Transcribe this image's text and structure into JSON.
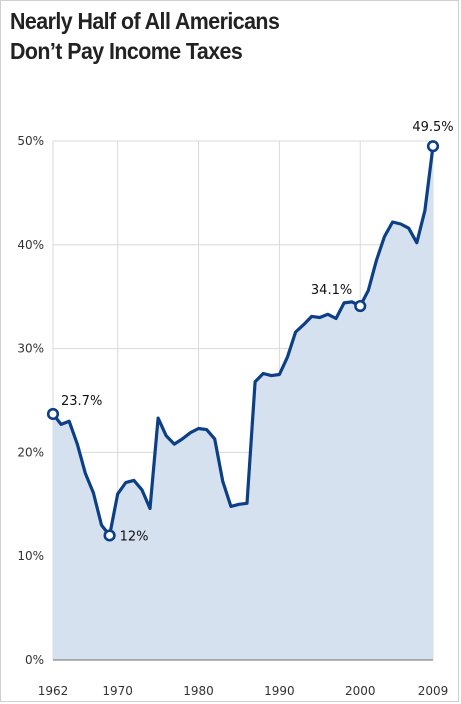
{
  "chart_data": {
    "type": "area",
    "title_lines": [
      "Nearly Half of All Americans",
      "Don’t Pay Income Taxes"
    ],
    "xlabel": "",
    "ylabel": "",
    "xlim": [
      1962,
      2009
    ],
    "ylim": [
      0,
      50
    ],
    "grid": true,
    "colors": {
      "line": "#0d3f86",
      "fill": "#d5e1ef",
      "grid": "#d9d9d9",
      "axis": "#888888"
    },
    "x_ticks": [
      1962,
      1970,
      1980,
      1990,
      2000,
      2009
    ],
    "x_tick_labels": [
      "1962",
      "1970",
      "1980",
      "1990",
      "2000",
      "2009"
    ],
    "y_ticks": [
      0,
      10,
      20,
      30,
      40,
      50
    ],
    "y_tick_labels": [
      "0%",
      "10%",
      "20%",
      "30%",
      "40%",
      "50%"
    ],
    "series": [
      {
        "x": [
          1962,
          1963,
          1964,
          1965,
          1966,
          1967,
          1968,
          1969,
          1970,
          1971,
          1972,
          1973,
          1974,
          1975,
          1976,
          1977,
          1978,
          1979,
          1980,
          1981,
          1982,
          1983,
          1984,
          1985,
          1986,
          1987,
          1988,
          1989,
          1990,
          1991,
          1992,
          1993,
          1994,
          1995,
          1996,
          1997,
          1998,
          1999,
          2000,
          2001,
          2002,
          2003,
          2004,
          2005,
          2006,
          2007,
          2008,
          2009
        ],
        "values": [
          23.7,
          22.7,
          23.0,
          20.8,
          18.0,
          16.1,
          13.0,
          12.0,
          16.0,
          17.1,
          17.3,
          16.4,
          14.6,
          23.3,
          21.6,
          20.8,
          21.3,
          21.9,
          22.3,
          22.2,
          21.3,
          17.2,
          14.8,
          15.0,
          15.1,
          26.8,
          27.6,
          27.4,
          27.5,
          29.2,
          31.6,
          32.3,
          33.1,
          33.0,
          33.3,
          32.9,
          34.4,
          34.5,
          34.1,
          35.6,
          38.5,
          40.8,
          42.2,
          42.0,
          41.6,
          40.2,
          43.3,
          49.5
        ]
      }
    ],
    "annotations": [
      {
        "x": 1962,
        "y": 23.7,
        "label": "23.7%"
      },
      {
        "x": 1969,
        "y": 12.0,
        "label": "12%"
      },
      {
        "x": 2000,
        "y": 34.1,
        "label": "34.1%"
      },
      {
        "x": 2009,
        "y": 49.5,
        "label": "49.5%"
      }
    ]
  }
}
